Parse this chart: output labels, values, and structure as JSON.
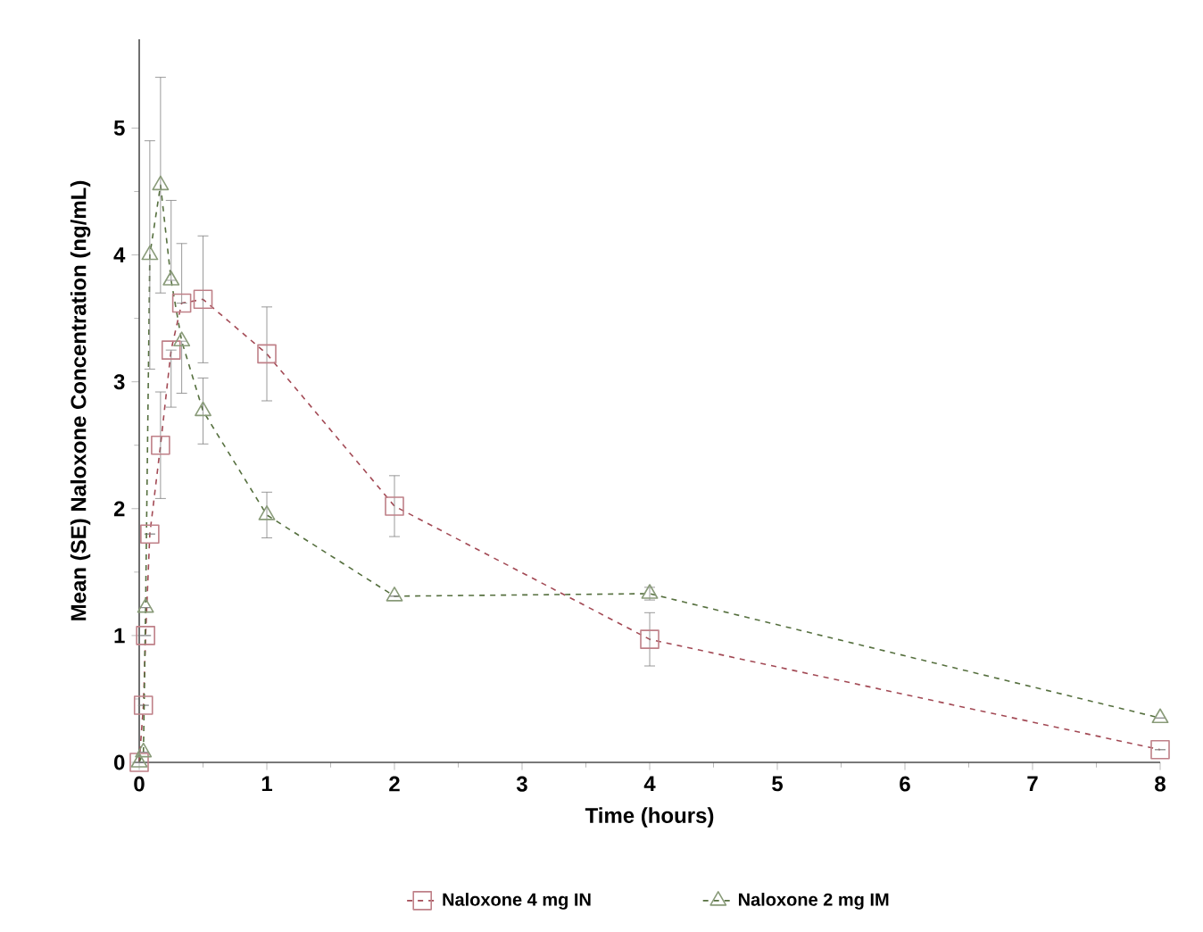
{
  "chart_data": {
    "type": "line",
    "xlabel": "Time (hours)",
    "ylabel": "Mean (SE) Naloxone Concentration (ng/mL)",
    "xlim": [
      0,
      8
    ],
    "ylim": [
      0,
      5.7
    ],
    "xticks": [
      0,
      1,
      2,
      3,
      4,
      5,
      6,
      7,
      8
    ],
    "yticks": [
      0,
      1,
      2,
      3,
      4,
      5
    ],
    "legend": "bottom",
    "grid": false,
    "line_style": "dashed",
    "series": [
      {
        "name": "Naloxone 4 mg IN",
        "color": "#a34a55",
        "marker": "square",
        "x": [
          0,
          0.033,
          0.05,
          0.083,
          0.167,
          0.25,
          0.333,
          0.5,
          1,
          2,
          4,
          8
        ],
        "values": [
          0,
          0.45,
          1.0,
          1.8,
          2.5,
          3.25,
          3.62,
          3.65,
          3.22,
          2.02,
          0.97,
          0.1
        ],
        "errors": [
          null,
          null,
          null,
          null,
          0.42,
          [
            2.8,
            3.25
          ],
          [
            3.62,
            4.09
          ],
          0.5,
          0.37,
          0.24,
          0.21,
          null
        ]
      },
      {
        "name": "Naloxone 2 mg IM",
        "color": "#56703f",
        "marker": "triangle",
        "x": [
          0,
          0.033,
          0.05,
          0.083,
          0.167,
          0.25,
          0.333,
          0.5,
          1,
          2,
          4,
          8
        ],
        "values": [
          0,
          0.08,
          1.22,
          4.0,
          4.55,
          3.8,
          3.32,
          2.77,
          1.95,
          1.31,
          1.33,
          0.35
        ],
        "errors": [
          null,
          null,
          null,
          0.9,
          0.85,
          [
            3.8,
            4.43
          ],
          [
            2.91,
            3.32
          ],
          0.26,
          0.18,
          null,
          0.05,
          null
        ]
      }
    ]
  }
}
